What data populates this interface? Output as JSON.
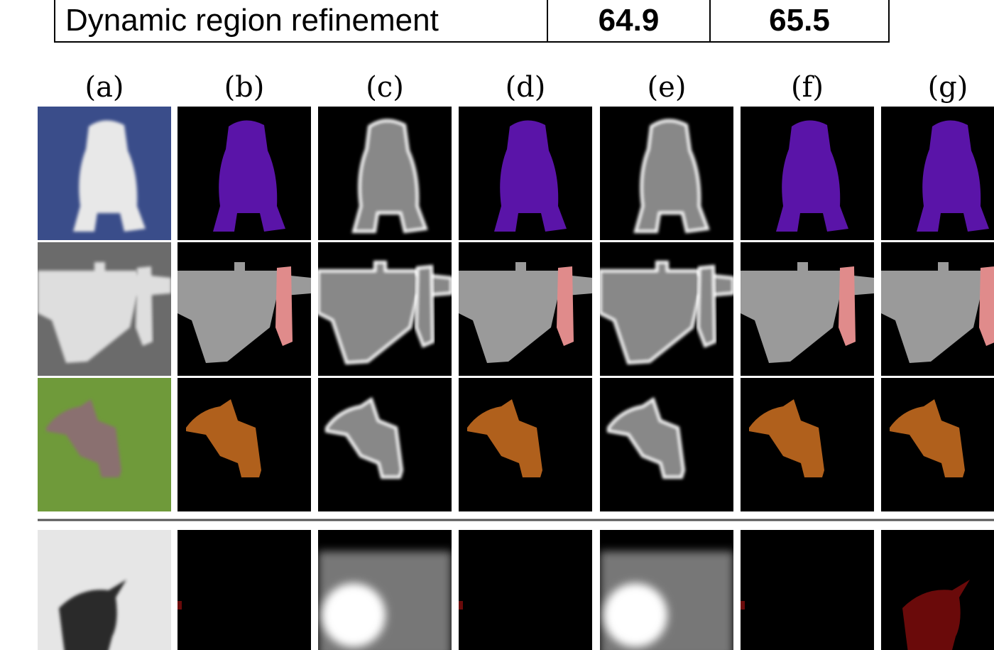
{
  "table": {
    "rows": [
      [
        "Dynamic region refinement",
        64.9,
        65.5
      ]
    ]
  },
  "columns": [
    "(a)",
    "(b)",
    "(c)",
    "(d)",
    "(e)",
    "(f)",
    "(g)"
  ]
}
